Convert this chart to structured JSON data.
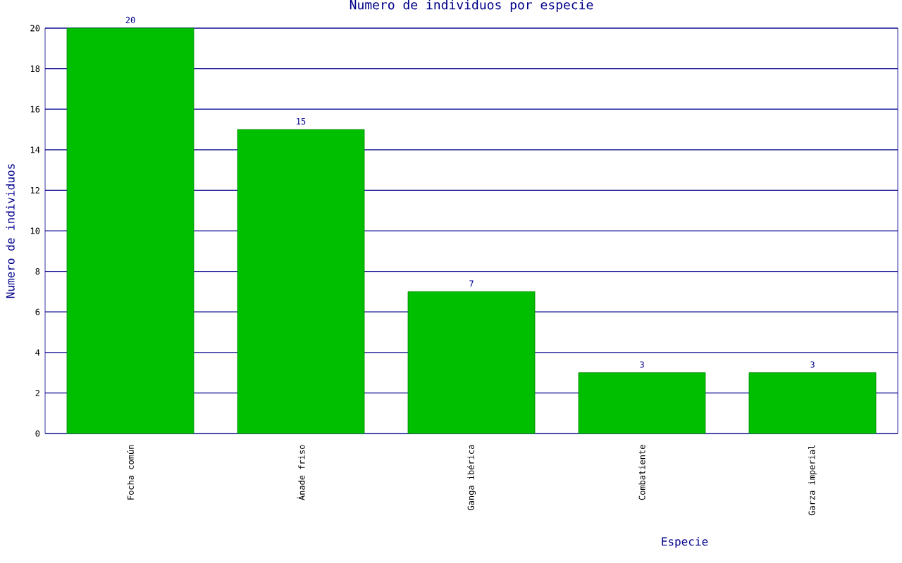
{
  "chart_data": {
    "type": "bar",
    "title": "Numero de individuos por especie",
    "xlabel": "Especie",
    "ylabel": "Numero de individuos",
    "categories": [
      "Focha común",
      "Ánade friso",
      "Ganga ibérica",
      "Combatiente",
      "Garza imperial"
    ],
    "values": [
      20,
      15,
      7,
      3,
      3
    ],
    "color": "#00bf00",
    "ylim": [
      0,
      20
    ],
    "yticks": [
      0,
      2,
      4,
      6,
      8,
      10,
      12,
      14,
      16,
      18,
      20
    ],
    "grid": "y",
    "data_labels": true
  }
}
